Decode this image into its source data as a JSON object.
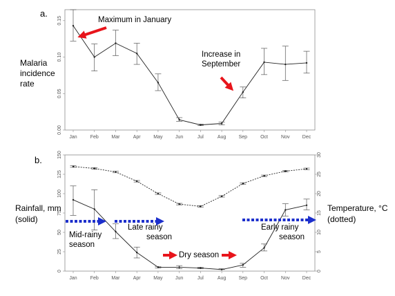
{
  "colors": {
    "ann_arrow": "#e8141b",
    "season_arrow": "#1c2fcc",
    "line": "#222222",
    "frame": "#8c8c8c"
  },
  "chart_data": [
    {
      "panel": "a.",
      "type": "line",
      "ylabel": "Malaria incidence rate",
      "ylim": [
        0,
        0.165
      ],
      "yticks": [
        "0.00",
        "0.05",
        "0.10",
        "0.15"
      ],
      "categories": [
        "Jan",
        "Feb",
        "Mar",
        "Apr",
        "May",
        "Jun",
        "Jul",
        "Aug",
        "Sep",
        "Oct",
        "Nov",
        "Dec"
      ],
      "series": [
        {
          "style": "solid",
          "values": [
            0.143,
            0.1,
            0.119,
            0.105,
            0.065,
            0.014,
            0.007,
            0.009,
            0.052,
            0.093,
            0.09,
            0.092
          ],
          "err_low": [
            0.122,
            0.081,
            0.102,
            0.09,
            0.054,
            0.012,
            0.006,
            0.007,
            0.044,
            0.076,
            0.068,
            0.078
          ],
          "err_high": [
            0.165,
            0.118,
            0.137,
            0.119,
            0.077,
            0.017,
            0.008,
            0.011,
            0.059,
            0.112,
            0.115,
            0.108
          ]
        }
      ],
      "annotations": [
        "Maximum in January",
        "Increase in",
        "September"
      ]
    },
    {
      "panel": "b.",
      "type": "line",
      "ylabel_left": [
        "Rainfall, mm",
        "(solid)"
      ],
      "ylabel_right": [
        "Temperature, °C",
        "(dotted)"
      ],
      "ylim_left": [
        0,
        150
      ],
      "ylim_right": [
        0,
        30
      ],
      "yticks_left": [
        "0",
        "25",
        "50",
        "75",
        "100",
        "125",
        "150"
      ],
      "yticks_right": [
        "0",
        "5",
        "10",
        "15",
        "20",
        "25",
        "30"
      ],
      "categories": [
        "Jan",
        "Feb",
        "Mar",
        "Apr",
        "May",
        "Jun",
        "Jul",
        "Aug",
        "Sep",
        "Oct",
        "Nov",
        "Dec"
      ],
      "series": [
        {
          "axis": "left",
          "style": "solid",
          "values": [
            92,
            80,
            51,
            24,
            5,
            5,
            4,
            2,
            8,
            30,
            79,
            85
          ],
          "err_low": [
            72,
            53,
            42,
            17,
            4,
            3,
            3,
            2,
            5,
            26,
            71,
            79
          ],
          "err_high": [
            110,
            105,
            61,
            31,
            6,
            7,
            5,
            3,
            10,
            35,
            87,
            93
          ]
        },
        {
          "axis": "right",
          "style": "dotted",
          "values": [
            27.0,
            26.5,
            25.6,
            23.2,
            20.0,
            17.3,
            16.7,
            19.3,
            22.6,
            24.6,
            25.8,
            26.4
          ],
          "err_low": [
            26.8,
            26.3,
            25.4,
            23.0,
            19.8,
            17.1,
            16.5,
            19.1,
            22.4,
            24.4,
            25.6,
            26.2
          ],
          "err_high": [
            27.2,
            26.7,
            25.8,
            23.4,
            20.2,
            17.5,
            16.9,
            19.5,
            22.8,
            24.8,
            26.0,
            26.6
          ]
        }
      ],
      "seasons": [
        "Mid-rainy",
        "season",
        "Late rainy",
        "season",
        "Dry season",
        "Early rainy",
        "season"
      ]
    }
  ]
}
